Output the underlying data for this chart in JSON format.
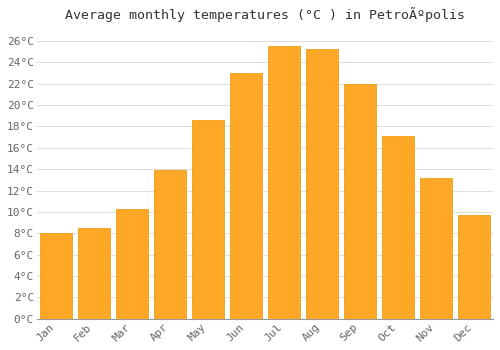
{
  "title": "Average monthly temperatures (°C ) in PetroÃºpolis",
  "months": [
    "Jan",
    "Feb",
    "Mar",
    "Apr",
    "May",
    "Jun",
    "Jul",
    "Aug",
    "Sep",
    "Oct",
    "Nov",
    "Dec"
  ],
  "values": [
    8.0,
    8.5,
    10.3,
    13.9,
    18.6,
    23.0,
    25.5,
    25.2,
    22.0,
    17.1,
    13.2,
    9.7
  ],
  "bar_color": "#FFA726",
  "bar_edge_color": "#E69500",
  "ylim": [
    0,
    27
  ],
  "ytick_step": 2,
  "background_color": "#ffffff",
  "grid_color": "#dddddd",
  "title_fontsize": 9.5,
  "tick_fontsize": 8,
  "title_color": "#333333",
  "tick_color": "#666666"
}
